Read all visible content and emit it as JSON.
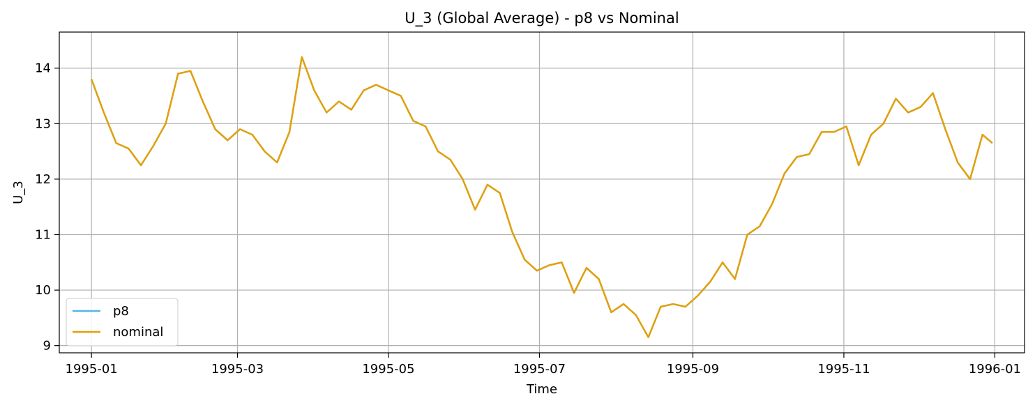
{
  "chart_data": {
    "type": "line",
    "title": "U_3 (Global Average) - p8 vs Nominal",
    "xlabel": "Time",
    "ylabel": "U_3",
    "x_ticks": [
      "1995-01",
      "1995-03",
      "1995-05",
      "1995-07",
      "1995-09",
      "1995-11",
      "1996-01"
    ],
    "y_ticks": [
      "9",
      "10",
      "11",
      "12",
      "13",
      "14"
    ],
    "xlim": [
      "1994-12-19",
      "1996-01-13"
    ],
    "ylim": [
      8.87,
      14.65
    ],
    "grid": true,
    "legend_position": "lower-left",
    "x": [
      "1995-01-01",
      "1995-01-06",
      "1995-01-11",
      "1995-01-16",
      "1995-01-21",
      "1995-01-26",
      "1995-01-31",
      "1995-02-05",
      "1995-02-10",
      "1995-02-15",
      "1995-02-20",
      "1995-02-25",
      "1995-03-02",
      "1995-03-07",
      "1995-03-12",
      "1995-03-17",
      "1995-03-22",
      "1995-03-27",
      "1995-04-01",
      "1995-04-06",
      "1995-04-11",
      "1995-04-16",
      "1995-04-21",
      "1995-04-26",
      "1995-05-01",
      "1995-05-06",
      "1995-05-11",
      "1995-05-16",
      "1995-05-21",
      "1995-05-26",
      "1995-05-31",
      "1995-06-05",
      "1995-06-10",
      "1995-06-15",
      "1995-06-20",
      "1995-06-25",
      "1995-06-30",
      "1995-07-05",
      "1995-07-10",
      "1995-07-15",
      "1995-07-20",
      "1995-07-25",
      "1995-07-30",
      "1995-08-04",
      "1995-08-09",
      "1995-08-14",
      "1995-08-19",
      "1995-08-24",
      "1995-08-29",
      "1995-09-03",
      "1995-09-08",
      "1995-09-13",
      "1995-09-18",
      "1995-09-23",
      "1995-09-28",
      "1995-10-03",
      "1995-10-08",
      "1995-10-13",
      "1995-10-18",
      "1995-10-23",
      "1995-10-28",
      "1995-11-02",
      "1995-11-07",
      "1995-11-12",
      "1995-11-17",
      "1995-11-22",
      "1995-11-27",
      "1995-12-02",
      "1995-12-07",
      "1995-12-12",
      "1995-12-17",
      "1995-12-22",
      "1995-12-27",
      "1995-12-31"
    ],
    "series": [
      {
        "name": "p8",
        "color": "#56b4e9",
        "values": [
          13.8,
          13.2,
          12.65,
          12.55,
          12.25,
          12.6,
          13.0,
          13.9,
          13.95,
          13.4,
          12.9,
          12.7,
          12.9,
          12.8,
          12.5,
          12.3,
          12.85,
          14.2,
          13.6,
          13.2,
          13.4,
          13.25,
          13.6,
          13.7,
          13.6,
          13.5,
          13.05,
          12.95,
          12.5,
          12.35,
          12.0,
          11.45,
          11.9,
          11.75,
          11.05,
          10.55,
          10.35,
          10.45,
          10.5,
          9.95,
          10.4,
          10.2,
          9.6,
          9.75,
          9.55,
          9.15,
          9.7,
          9.75,
          9.7,
          9.9,
          10.15,
          10.5,
          10.2,
          11.0,
          11.15,
          11.55,
          12.1,
          12.4,
          12.45,
          12.85,
          12.85,
          12.95,
          12.25,
          12.8,
          13.0,
          13.45,
          13.2,
          13.3,
          13.55,
          12.9,
          12.3,
          12.0,
          12.8,
          12.65
        ]
      },
      {
        "name": "nominal",
        "color": "#e69f00",
        "values": [
          13.8,
          13.2,
          12.65,
          12.55,
          12.25,
          12.6,
          13.0,
          13.9,
          13.95,
          13.4,
          12.9,
          12.7,
          12.9,
          12.8,
          12.5,
          12.3,
          12.85,
          14.2,
          13.6,
          13.2,
          13.4,
          13.25,
          13.6,
          13.7,
          13.6,
          13.5,
          13.05,
          12.95,
          12.5,
          12.35,
          12.0,
          11.45,
          11.9,
          11.75,
          11.05,
          10.55,
          10.35,
          10.45,
          10.5,
          9.95,
          10.4,
          10.2,
          9.6,
          9.75,
          9.55,
          9.15,
          9.7,
          9.75,
          9.7,
          9.9,
          10.15,
          10.5,
          10.2,
          11.0,
          11.15,
          11.55,
          12.1,
          12.4,
          12.45,
          12.85,
          12.85,
          12.95,
          12.25,
          12.8,
          13.0,
          13.45,
          13.2,
          13.3,
          13.55,
          12.9,
          12.3,
          12.0,
          12.8,
          12.65
        ]
      }
    ]
  }
}
